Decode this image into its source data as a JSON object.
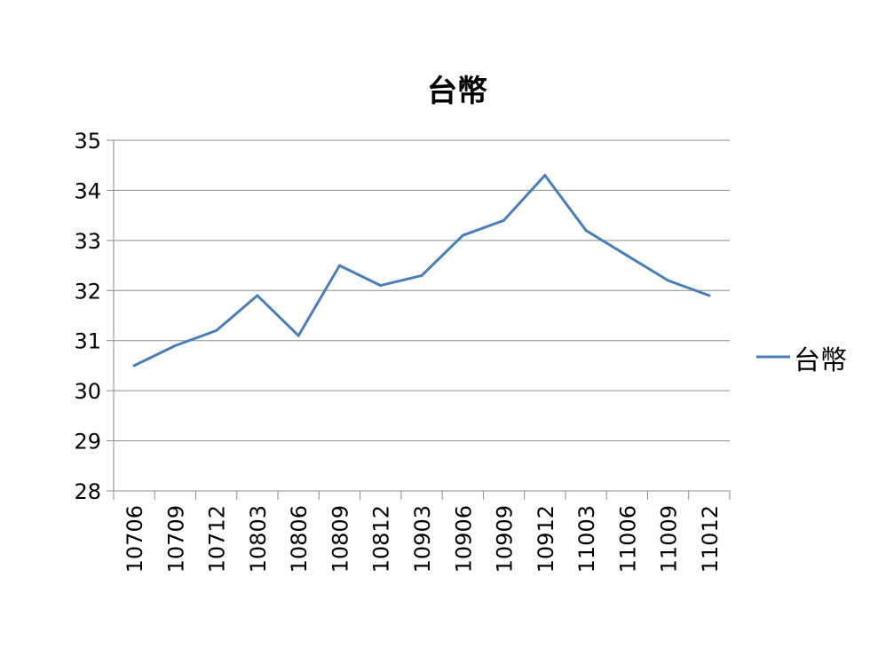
{
  "chart_data": {
    "type": "line",
    "title": "台幣",
    "xlabel": "",
    "ylabel": "",
    "categories": [
      "10706",
      "10709",
      "10712",
      "10803",
      "10806",
      "10809",
      "10812",
      "10903",
      "10906",
      "10909",
      "10912",
      "11003",
      "11006",
      "11009",
      "11012"
    ],
    "series": [
      {
        "name": "台幣",
        "color": "#4a7ebb",
        "values": [
          30.5,
          30.9,
          31.2,
          31.9,
          31.1,
          32.5,
          32.1,
          32.3,
          33.1,
          33.4,
          34.3,
          33.2,
          32.7,
          32.2,
          31.9
        ]
      }
    ],
    "ylim": [
      28,
      35
    ],
    "yticks": [
      "28",
      "29",
      "30",
      "31",
      "32",
      "33",
      "34",
      "35"
    ],
    "grid": true,
    "legend_position": "right"
  }
}
